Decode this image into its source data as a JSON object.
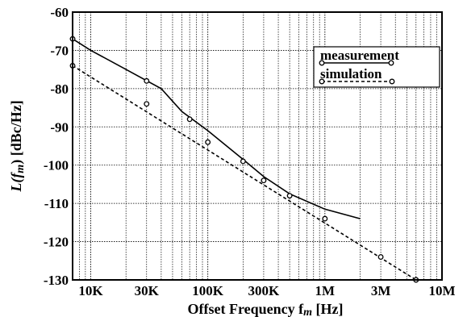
{
  "chart_data": {
    "type": "line",
    "x_scale": "log",
    "xlim": [
      7000,
      10000000
    ],
    "ylim": [
      -130,
      -60
    ],
    "grid": true,
    "xlabel": "Offset Frequency  f",
    "xlabel_sub": "m",
    "xlabel_unit": "  [Hz]",
    "ylabel": "L(f",
    "ylabel_sub": "m",
    "ylabel_unit": ")   [dBc/Hz]",
    "x_ticks": [
      {
        "value": 10000,
        "label": "10K"
      },
      {
        "value": 30000,
        "label": "30K"
      },
      {
        "value": 100000,
        "label": "100K"
      },
      {
        "value": 300000,
        "label": "300K"
      },
      {
        "value": 1000000,
        "label": "1M"
      },
      {
        "value": 3000000,
        "label": "3M"
      },
      {
        "value": 10000000,
        "label": "10M"
      }
    ],
    "y_ticks": [
      {
        "value": -60,
        "label": "-60"
      },
      {
        "value": -70,
        "label": "-70"
      },
      {
        "value": -80,
        "label": "-80"
      },
      {
        "value": -90,
        "label": "-90"
      },
      {
        "value": -100,
        "label": "-100"
      },
      {
        "value": -110,
        "label": "-110"
      },
      {
        "value": -120,
        "label": "-120"
      },
      {
        "value": -130,
        "label": "-130"
      }
    ],
    "legend_position": "top-right",
    "series": [
      {
        "name": "measurement",
        "style": "solid",
        "color": "#000000",
        "x": [
          7000,
          10000,
          20000,
          40000,
          60000,
          100000,
          200000,
          300000,
          500000,
          1000000,
          2000000
        ],
        "y": [
          -67,
          -70,
          -75,
          -80,
          -86,
          -91,
          -98.5,
          -103,
          -107.5,
          -111.5,
          -114
        ],
        "markers": [
          {
            "x": 7000,
            "y": -67
          },
          {
            "x": 30000,
            "y": -78
          },
          {
            "x": 70000,
            "y": -88
          },
          {
            "x": 200000,
            "y": -99
          }
        ]
      },
      {
        "name": "simulation",
        "style": "dashed",
        "color": "#000000",
        "x": [
          7000,
          6000000
        ],
        "y": [
          -74,
          -130
        ],
        "markers": [
          {
            "x": 7000,
            "y": -74
          },
          {
            "x": 30000,
            "y": -84
          },
          {
            "x": 100000,
            "y": -94
          },
          {
            "x": 300000,
            "y": -104
          },
          {
            "x": 500000,
            "y": -108
          },
          {
            "x": 1000000,
            "y": -114
          },
          {
            "x": 3000000,
            "y": -124
          },
          {
            "x": 6000000,
            "y": -130
          }
        ]
      }
    ]
  }
}
